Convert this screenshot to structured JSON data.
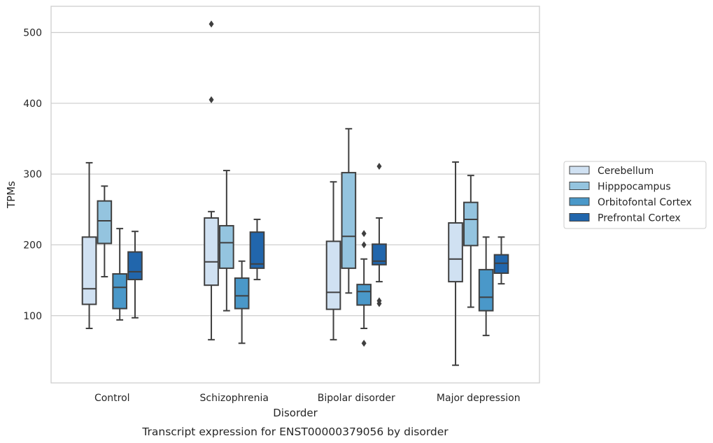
{
  "caption": "Transcript expression for ENST00000379056 by disorder",
  "chart_data": {
    "type": "box",
    "xlabel": "Disorder",
    "ylabel": "TPMs",
    "ylim": [
      5,
      537
    ],
    "yticks": [
      100,
      200,
      300,
      400,
      500
    ],
    "grid": "horizontal",
    "legend_position": "right",
    "categories": [
      "Control",
      "Schizophrenia",
      "Bipolar disorder",
      "Major depression"
    ],
    "series": [
      {
        "name": "Cerebellum",
        "color": "#d0e1f2",
        "boxes": [
          {
            "whisker_low": 82,
            "q1": 116,
            "median": 138,
            "q3": 211,
            "whisker_high": 316,
            "outliers": []
          },
          {
            "whisker_low": 66,
            "q1": 143,
            "median": 176,
            "q3": 238,
            "whisker_high": 247,
            "outliers": [
              405,
              512
            ]
          },
          {
            "whisker_low": 66,
            "q1": 109,
            "median": 133,
            "q3": 205,
            "whisker_high": 289,
            "outliers": []
          },
          {
            "whisker_low": 30,
            "q1": 148,
            "median": 180,
            "q3": 231,
            "whisker_high": 317,
            "outliers": []
          }
        ]
      },
      {
        "name": "Hipppocampus",
        "color": "#94c4df",
        "boxes": [
          {
            "whisker_low": 155,
            "q1": 202,
            "median": 234,
            "q3": 262,
            "whisker_high": 283,
            "outliers": []
          },
          {
            "whisker_low": 107,
            "q1": 167,
            "median": 203,
            "q3": 227,
            "whisker_high": 305,
            "outliers": []
          },
          {
            "whisker_low": 132,
            "q1": 167,
            "median": 212,
            "q3": 302,
            "whisker_high": 364,
            "outliers": []
          },
          {
            "whisker_low": 112,
            "q1": 199,
            "median": 236,
            "q3": 260,
            "whisker_high": 298,
            "outliers": []
          }
        ]
      },
      {
        "name": "Orbitofontal Cortex",
        "color": "#4a98c9",
        "boxes": [
          {
            "whisker_low": 94,
            "q1": 110,
            "median": 140,
            "q3": 159,
            "whisker_high": 223,
            "outliers": []
          },
          {
            "whisker_low": 61,
            "q1": 110,
            "median": 128,
            "q3": 153,
            "whisker_high": 177,
            "outliers": []
          },
          {
            "whisker_low": 82,
            "q1": 115,
            "median": 134,
            "q3": 144,
            "whisker_high": 180,
            "outliers": [
              61,
              200,
              216
            ]
          },
          {
            "whisker_low": 72,
            "q1": 107,
            "median": 126,
            "q3": 165,
            "whisker_high": 211,
            "outliers": []
          }
        ]
      },
      {
        "name": "Prefrontal Cortex",
        "color": "#2166ac",
        "boxes": [
          {
            "whisker_low": 97,
            "q1": 151,
            "median": 162,
            "q3": 190,
            "whisker_high": 219,
            "outliers": []
          },
          {
            "whisker_low": 151,
            "q1": 167,
            "median": 173,
            "q3": 218,
            "whisker_high": 236,
            "outliers": []
          },
          {
            "whisker_low": 148,
            "q1": 172,
            "median": 177,
            "q3": 201,
            "whisker_high": 238,
            "outliers": [
              117,
              121,
              311
            ]
          },
          {
            "whisker_low": 145,
            "q1": 160,
            "median": 174,
            "q3": 186,
            "whisker_high": 211,
            "outliers": []
          }
        ]
      }
    ]
  }
}
